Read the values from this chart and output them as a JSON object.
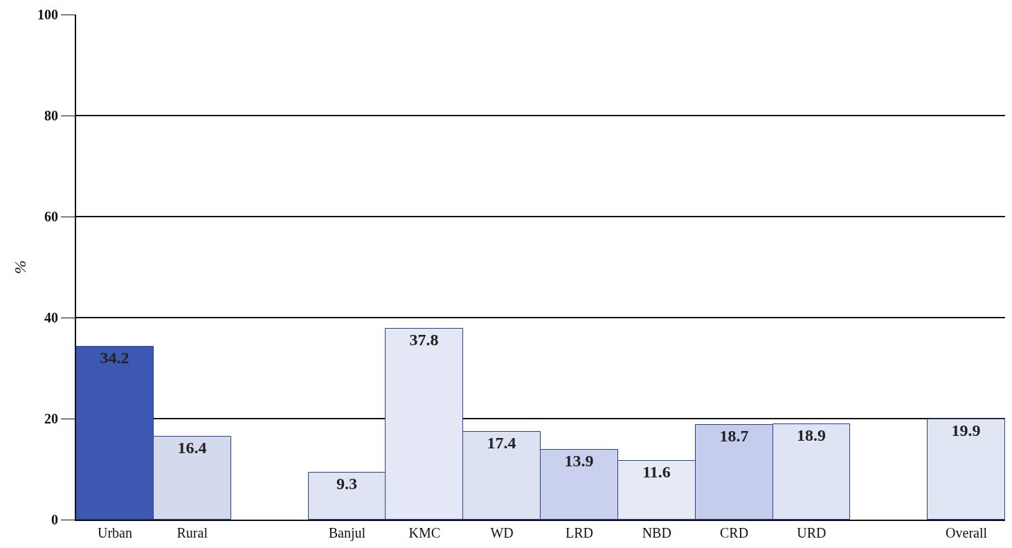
{
  "chart_data": {
    "type": "bar",
    "ylabel": "%",
    "categories": [
      "Urban",
      "Rural",
      null,
      "Banjul",
      "KMC",
      "WD",
      "LRD",
      "NBD",
      "CRD",
      "URD",
      null,
      "Overall"
    ],
    "values": [
      34.2,
      16.4,
      null,
      9.3,
      37.8,
      17.4,
      13.9,
      11.6,
      18.7,
      18.9,
      null,
      19.9
    ],
    "colors": [
      "#3d58b0",
      "#d4daee",
      null,
      "#dfe4f4",
      "#e4e8f6",
      "#dde2f3",
      "#c9d1ee",
      "#e6eaf6",
      "#c4cdec",
      "#dfe4f4",
      null,
      "#e1e6f5"
    ],
    "data_labels": true,
    "ylim": [
      0,
      100
    ],
    "yticks": [
      0,
      20,
      40,
      60,
      80,
      100
    ],
    "grid": "y",
    "legend": false
  }
}
